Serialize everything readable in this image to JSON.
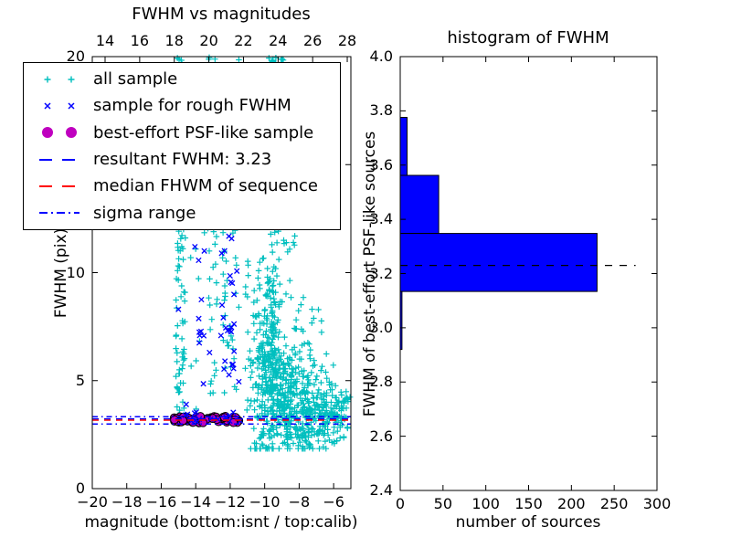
{
  "chart_data": [
    {
      "type": "scatter",
      "title": "FWHM vs magnitudes",
      "xlabel": "magnitude (bottom:isnt / top:calib)",
      "ylabel": "FWHM (pix)",
      "xlim": [
        -20,
        -5
      ],
      "ylim": [
        0,
        20
      ],
      "x_ticks_bottom": {
        "values": [
          -20,
          -18,
          -16,
          -14,
          -12,
          -10,
          -8,
          -6
        ],
        "labels": [
          "−20",
          "−18",
          "−16",
          "−14",
          "−12",
          "−10",
          "−8",
          "−6"
        ]
      },
      "x_ticks_top": {
        "axis_range": [
          13.26,
          28.21
        ],
        "values": [
          14,
          16,
          18,
          20,
          22,
          24,
          26,
          28
        ],
        "labels": [
          "14",
          "16",
          "18",
          "20",
          "22",
          "24",
          "26",
          "28"
        ]
      },
      "y_ticks": {
        "values": [
          0,
          5,
          10,
          15,
          20
        ],
        "labels": [
          "0",
          "5",
          "10",
          "15",
          "20"
        ]
      },
      "series": [
        {
          "name": "all sample",
          "marker": "plus",
          "color": "#00bfbf",
          "clusters": [
            {
              "type": "uniform",
              "x": [
                -15.15,
                -14.6
              ],
              "y": [
                2.9,
                20
              ],
              "n": 130
            },
            {
              "type": "uniform",
              "x": [
                -13.35,
                -12.75
              ],
              "y": [
                3.4,
                20
              ],
              "n": 60
            },
            {
              "type": "uniform",
              "x": [
                -12.45,
                -11.6
              ],
              "y": [
                3.1,
                12.5
              ],
              "n": 35
            },
            {
              "type": "uniform",
              "x": [
                -14.5,
                -13.4
              ],
              "y": [
                3.2,
                19
              ],
              "n": 14
            },
            {
              "type": "gauss",
              "cx": -9.9,
              "cy": 6.0,
              "sx": 0.5,
              "sy": 2.4,
              "n": 230
            },
            {
              "type": "gauss",
              "cx": -8.9,
              "cy": 4.5,
              "sx": 0.7,
              "sy": 1.4,
              "n": 230
            },
            {
              "type": "gauss",
              "cx": -7.7,
              "cy": 3.8,
              "sx": 0.8,
              "sy": 1.1,
              "n": 170
            },
            {
              "type": "gauss",
              "cx": -6.35,
              "cy": 3.5,
              "sx": 0.55,
              "sy": 0.8,
              "n": 90
            },
            {
              "type": "uniform",
              "x": [
                -9.75,
                -9.4
              ],
              "y": [
                6,
                20
              ],
              "n": 50
            },
            {
              "type": "uniform",
              "x": [
                -11.25,
                -8.2
              ],
              "y": [
                7,
                19.5
              ],
              "n": 70
            },
            {
              "type": "uniform",
              "x": [
                -8.2,
                -6.4
              ],
              "y": [
                5,
                9
              ],
              "n": 25
            },
            {
              "type": "uniform",
              "x": [
                -10.6,
                -5.4
              ],
              "y": [
                1.9,
                2.9
              ],
              "n": 55
            },
            {
              "type": "uniform",
              "x": [
                -5.95,
                -5.15
              ],
              "y": [
                2.6,
                4.8
              ],
              "n": 25
            },
            {
              "type": "uniform",
              "x": [
                -9.6,
                -8.9
              ],
              "y": [
                19.4,
                20
              ],
              "n": 16
            },
            {
              "type": "points",
              "pts": [
                [
                  -11.5,
                  19.85
                ],
                [
                  -11.2,
                  19.5
                ]
              ]
            }
          ]
        },
        {
          "name": "best-effort PSF-like sample",
          "marker": "circle",
          "color": "#bf00bf",
          "clusters": [
            {
              "type": "uniform",
              "x": [
                -15.25,
                -11.5
              ],
              "y": [
                3.05,
                3.35
              ],
              "n": 70
            }
          ]
        },
        {
          "name": "sample for rough FWHM",
          "marker": "x",
          "color": "#0000ff",
          "clusters": [
            {
              "type": "uniform",
              "x": [
                -13.85,
                -13.35
              ],
              "y": [
                4.6,
                11.3
              ],
              "n": 9
            },
            {
              "type": "uniform",
              "x": [
                -12.5,
                -11.7
              ],
              "y": [
                4.9,
                11.3
              ],
              "n": 13
            },
            {
              "type": "gauss",
              "cx": -12.15,
              "cy": 7.35,
              "sx": 0.18,
              "sy": 0.25,
              "n": 6
            },
            {
              "type": "gauss",
              "cx": -11.9,
              "cy": 10.6,
              "sx": 0.12,
              "sy": 0.6,
              "n": 6
            },
            {
              "type": "uniform",
              "x": [
                -14.9,
                -11.4
              ],
              "y": [
                3.1,
                3.55
              ],
              "n": 16
            },
            {
              "type": "points",
              "pts": [
                [
                  -15.0,
                  8.3
                ],
                [
                  -14.05,
                  11.2
                ],
                [
                  -13.5,
                  11.0
                ],
                [
                  -14.55,
                  3.9
                ],
                [
                  -11.5,
                  4.95
                ],
                [
                  -13.2,
                  6.3
                ]
              ]
            }
          ]
        }
      ],
      "ref_lines": [
        {
          "name": "resultant FWHM",
          "y": 3.23,
          "color": "#0000ff",
          "style": "dashed"
        },
        {
          "name": "median FHWM of sequence",
          "y": 3.17,
          "color": "#ff0000",
          "style": "dashed"
        },
        {
          "name": "sigma range upper",
          "y": 3.33,
          "color": "#0000ff",
          "style": "dashdot"
        },
        {
          "name": "sigma range lower",
          "y": 2.99,
          "color": "#0000ff",
          "style": "dashdot"
        }
      ],
      "legend": {
        "items": [
          {
            "label": "all sample",
            "marker": "plus",
            "color": "#00bfbf"
          },
          {
            "label": "sample for rough FWHM",
            "marker": "x",
            "color": "#0000ff"
          },
          {
            "label": "best-effort PSF-like sample",
            "marker": "circle",
            "color": "#bf00bf"
          },
          {
            "label": "resultant FWHM: 3.23",
            "marker": "dashed-line",
            "color": "#0000ff"
          },
          {
            "label": "median FHWM of sequence",
            "marker": "dashed-line",
            "color": "#ff0000"
          },
          {
            "label": "sigma range",
            "marker": "dashdot-line",
            "color": "#0000ff"
          }
        ]
      }
    },
    {
      "type": "bar",
      "orientation": "horizontal",
      "title": "histogram of FWHM",
      "xlabel": "number of sources",
      "ylabel": "FWHM of best-effort PSF-like sources",
      "xlim": [
        0,
        300
      ],
      "ylim": [
        2.4,
        4.0
      ],
      "x_ticks": {
        "values": [
          0,
          50,
          100,
          150,
          200,
          250,
          300
        ],
        "labels": [
          "0",
          "50",
          "100",
          "150",
          "200",
          "250",
          "300"
        ]
      },
      "y_ticks": {
        "values": [
          2.4,
          2.6,
          2.8,
          3.0,
          3.2,
          3.4,
          3.6,
          3.8,
          4.0
        ],
        "labels": [
          "2.4",
          "2.6",
          "2.8",
          "3.0",
          "3.2",
          "3.4",
          "3.6",
          "3.8",
          "4.0"
        ]
      },
      "bar_color": "#0000ff",
      "bins": [
        {
          "y0": 2.92,
          "y1": 3.134,
          "count": 2
        },
        {
          "y0": 3.134,
          "y1": 3.348,
          "count": 230
        },
        {
          "y0": 3.348,
          "y1": 3.562,
          "count": 45
        },
        {
          "y0": 3.562,
          "y1": 3.776,
          "count": 8
        }
      ],
      "ref_line": {
        "y": 3.23,
        "x_end": 275,
        "style": "dashed",
        "color": "#000000"
      }
    }
  ]
}
